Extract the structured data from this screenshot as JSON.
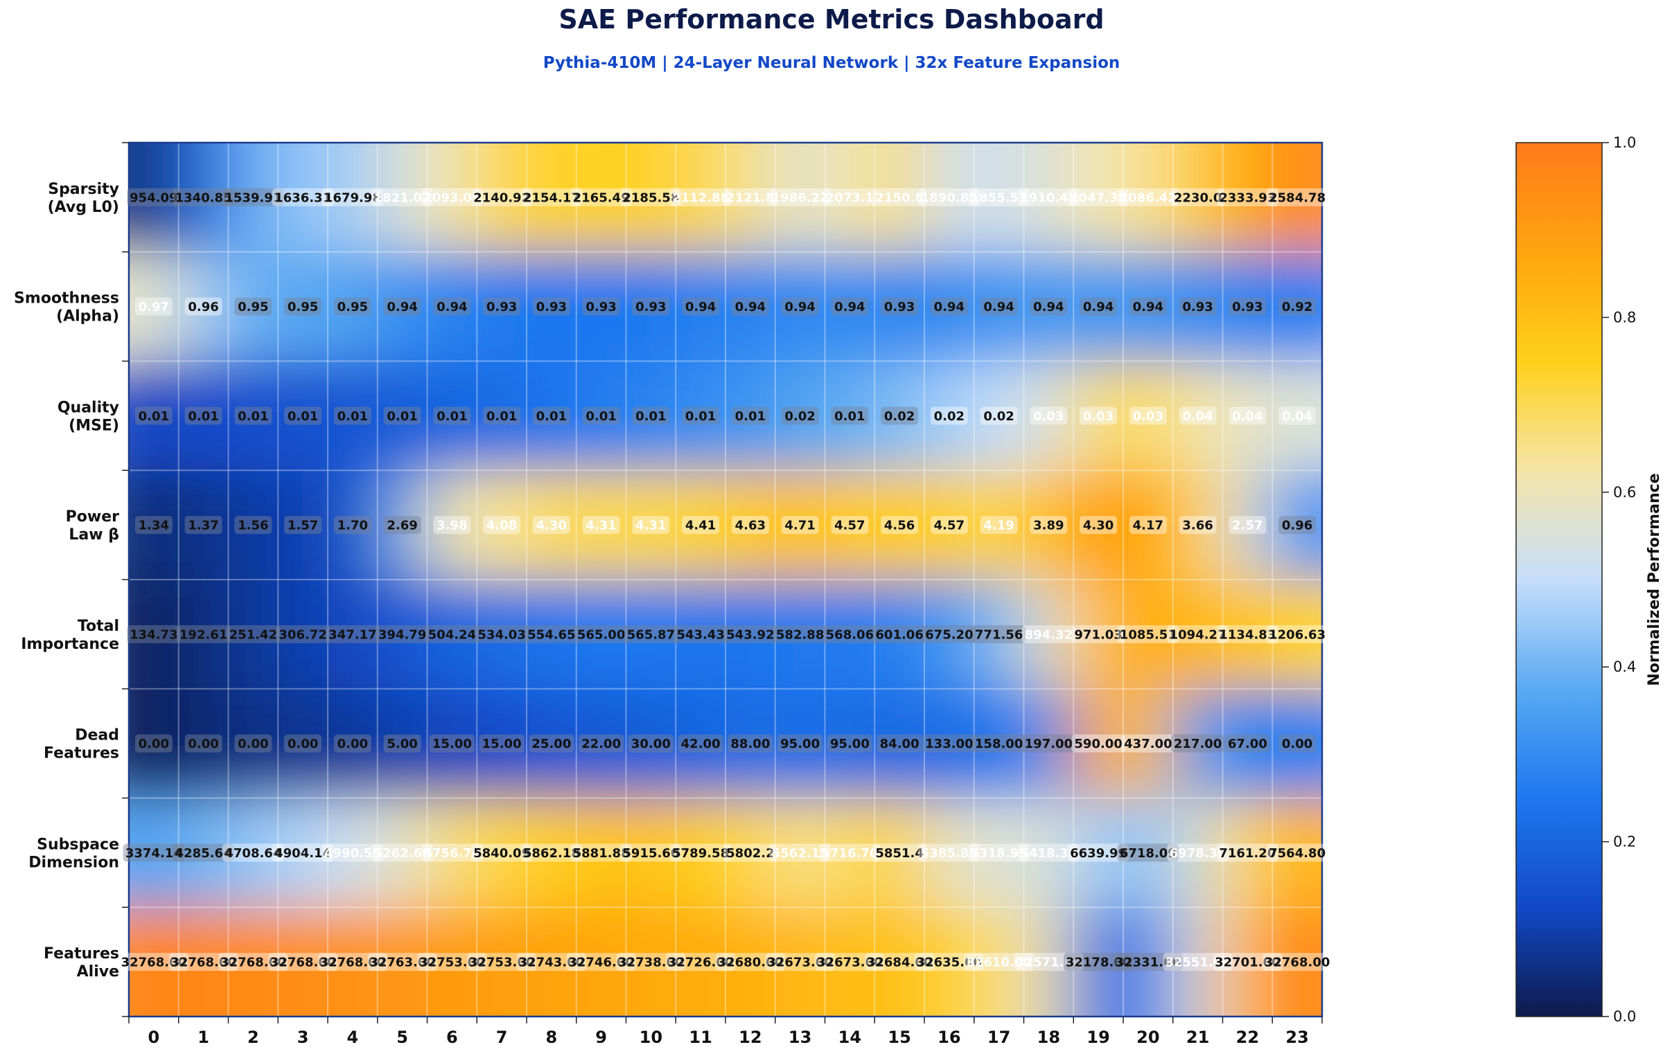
{
  "title": "SAE Performance Metrics Dashboard",
  "subtitle": "Pythia-410M | 24-Layer Neural Network | 32x Feature Expansion",
  "chart_data": {
    "type": "heatmap",
    "x": [
      0,
      1,
      2,
      3,
      4,
      5,
      6,
      7,
      8,
      9,
      10,
      11,
      12,
      13,
      14,
      15,
      16,
      17,
      18,
      19,
      20,
      21,
      22,
      23
    ],
    "metrics": [
      {
        "label_lines": [
          "Sparsity",
          "(Avg L0)"
        ],
        "labels": [
          "954.09",
          "1340.85",
          "1539.91",
          "1636.31",
          "1679.98",
          "1821.02",
          "2093.09",
          "2140.92",
          "2154.17",
          "2165.49",
          "2185.58",
          "2112.88",
          "2121.8",
          "1986.22",
          "2073.1",
          "2150.8",
          "1890.85",
          "1855.51",
          "1910.48",
          "2047.38",
          "2086.42",
          "2230.0",
          "2333.93",
          "2584.78"
        ],
        "norm": [
          0.05,
          0.22,
          0.38,
          0.45,
          0.45,
          0.55,
          0.62,
          0.72,
          0.74,
          0.74,
          0.75,
          0.7,
          0.66,
          0.55,
          0.62,
          0.68,
          0.52,
          0.52,
          0.56,
          0.62,
          0.64,
          0.76,
          0.86,
          0.96
        ]
      },
      {
        "label_lines": [
          "Smoothness",
          "(Alpha)"
        ],
        "labels": [
          "0.97",
          "0.96",
          "0.95",
          "0.95",
          "0.95",
          "0.94",
          "0.94",
          "0.93",
          "0.93",
          "0.93",
          "0.93",
          "0.94",
          "0.94",
          "0.94",
          "0.94",
          "0.93",
          "0.94",
          "0.94",
          "0.94",
          "0.94",
          "0.94",
          "0.93",
          "0.93",
          "0.92"
        ],
        "norm": [
          0.58,
          0.45,
          0.38,
          0.36,
          0.36,
          0.3,
          0.28,
          0.25,
          0.25,
          0.25,
          0.25,
          0.27,
          0.28,
          0.29,
          0.3,
          0.28,
          0.3,
          0.32,
          0.33,
          0.33,
          0.32,
          0.3,
          0.28,
          0.26
        ]
      },
      {
        "label_lines": [
          "Quality",
          "(MSE)"
        ],
        "labels": [
          "0.01",
          "0.01",
          "0.01",
          "0.01",
          "0.01",
          "0.01",
          "0.01",
          "0.01",
          "0.01",
          "0.01",
          "0.01",
          "0.01",
          "0.01",
          "0.02",
          "0.01",
          "0.02",
          "0.02",
          "0.02",
          "0.03",
          "0.03",
          "0.03",
          "0.04",
          "0.04",
          "0.04"
        ],
        "norm": [
          0.12,
          0.13,
          0.14,
          0.15,
          0.16,
          0.18,
          0.2,
          0.22,
          0.24,
          0.26,
          0.28,
          0.3,
          0.32,
          0.36,
          0.38,
          0.42,
          0.46,
          0.5,
          0.55,
          0.68,
          0.7,
          0.62,
          0.58,
          0.55
        ]
      },
      {
        "label_lines": [
          "Power",
          "Law β"
        ],
        "labels": [
          "1.34",
          "1.37",
          "1.56",
          "1.57",
          "1.70",
          "2.69",
          "3.98",
          "4.08",
          "4.30",
          "4.31",
          "4.31",
          "4.41",
          "4.63",
          "4.71",
          "4.57",
          "4.56",
          "4.57",
          "4.19",
          "3.89",
          "4.30",
          "4.17",
          "3.66",
          "2.57",
          "0.96"
        ],
        "norm": [
          0.05,
          0.06,
          0.09,
          0.1,
          0.13,
          0.35,
          0.62,
          0.64,
          0.7,
          0.7,
          0.71,
          0.73,
          0.77,
          0.8,
          0.76,
          0.76,
          0.76,
          0.7,
          0.8,
          0.9,
          0.88,
          0.75,
          0.55,
          0.3
        ]
      },
      {
        "label_lines": [
          "Total",
          "Importance"
        ],
        "labels": [
          "134.73",
          "192.61",
          "251.42",
          "306.72",
          "347.17",
          "394.79",
          "504.24",
          "534.03",
          "554.65",
          "565.00",
          "565.87",
          "543.43",
          "543.92",
          "582.88",
          "568.06",
          "601.06",
          "675.20",
          "771.56",
          "894.32",
          "971.03",
          "1085.51",
          "1094.27",
          "1134.83",
          "1206.63"
        ],
        "norm": [
          0.02,
          0.05,
          0.08,
          0.1,
          0.12,
          0.16,
          0.2,
          0.22,
          0.24,
          0.25,
          0.25,
          0.24,
          0.24,
          0.26,
          0.25,
          0.27,
          0.32,
          0.4,
          0.58,
          0.82,
          0.86,
          0.82,
          0.78,
          0.74
        ]
      },
      {
        "label_lines": [
          "Dead",
          "Features"
        ],
        "labels": [
          "0.00",
          "0.00",
          "0.00",
          "0.00",
          "0.00",
          "5.00",
          "15.00",
          "15.00",
          "25.00",
          "22.00",
          "30.00",
          "42.00",
          "88.00",
          "95.00",
          "95.00",
          "84.00",
          "133.00",
          "158.00",
          "197.00",
          "590.00",
          "437.00",
          "217.00",
          "67.00",
          "0.00"
        ],
        "norm": [
          0.02,
          0.04,
          0.06,
          0.07,
          0.08,
          0.1,
          0.12,
          0.13,
          0.16,
          0.17,
          0.18,
          0.2,
          0.22,
          0.22,
          0.22,
          0.21,
          0.22,
          0.24,
          0.3,
          0.88,
          0.78,
          0.32,
          0.28,
          0.26
        ]
      },
      {
        "label_lines": [
          "Subspace",
          "Dimension"
        ],
        "labels": [
          "3374.14",
          "4285.64",
          "4708.64",
          "4904.14",
          "4990.55",
          "5262.68",
          "5756.70",
          "5840.09",
          "5862.18",
          "5881.88",
          "5915.60",
          "5789.58",
          "5802.2",
          "5562.15",
          "5716.70",
          "5851.4",
          "5385.85",
          "5318.95",
          "5418.38",
          "6639.99",
          "6718.09",
          "6978.30",
          "7161.20",
          "7564.80"
        ],
        "norm": [
          0.35,
          0.4,
          0.44,
          0.48,
          0.52,
          0.58,
          0.68,
          0.72,
          0.76,
          0.78,
          0.8,
          0.74,
          0.74,
          0.64,
          0.7,
          0.74,
          0.58,
          0.55,
          0.56,
          0.45,
          0.42,
          0.55,
          0.72,
          0.84
        ]
      },
      {
        "label_lines": [
          "Features",
          "Alive"
        ],
        "labels": [
          "32768.00",
          "32768.00",
          "32768.00",
          "32768.00",
          "32768.00",
          "32763.00",
          "32753.00",
          "32753.00",
          "32743.00",
          "32746.00",
          "32738.00",
          "32726.00",
          "32680.00",
          "32673.00",
          "32673.00",
          "32684.00",
          "32635.00",
          "32610.00",
          "32571.00",
          "32178.00",
          "32331.00",
          "32551.00",
          "32701.00",
          "32768.00"
        ],
        "norm": [
          0.97,
          0.96,
          0.95,
          0.94,
          0.93,
          0.92,
          0.9,
          0.89,
          0.88,
          0.87,
          0.86,
          0.85,
          0.84,
          0.82,
          0.8,
          0.8,
          0.74,
          0.68,
          0.58,
          0.18,
          0.25,
          0.55,
          0.85,
          0.97
        ]
      }
    ],
    "colorbar": {
      "label": "Normalized Performance",
      "range": [
        0,
        1
      ],
      "ticks": [
        "0.0",
        "0.2",
        "0.4",
        "0.6",
        "0.8",
        "1.0"
      ]
    },
    "colormap": [
      "#0d1b4a",
      "#1248c8",
      "#1e78f0",
      "#5aaaf2",
      "#c6defa",
      "#f5e5a8",
      "#ffd01a",
      "#ffa40e",
      "#ff7a1a"
    ]
  }
}
